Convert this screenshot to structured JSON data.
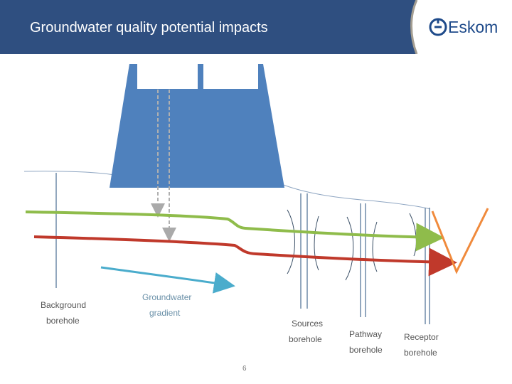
{
  "header": {
    "title": "Groundwater quality potential impacts",
    "logo_text": "Eskom",
    "background_color": "#2f4f80"
  },
  "diagram": {
    "labels": {
      "background_borehole": [
        "Background",
        "borehole"
      ],
      "groundwater_gradient": [
        "Groundwater",
        "gradient"
      ],
      "sources_borehole": [
        "Sources",
        "borehole"
      ],
      "pathway_borehole": [
        "Pathway",
        "borehole"
      ],
      "receptor_borehole": [
        "Receptor",
        "borehole"
      ]
    },
    "colors": {
      "facility": "#4f81bd",
      "water_table_upper": "#8fbc4b",
      "water_table_lower": "#c0392b",
      "gradient_arrow": "#4aaccc",
      "river": "#f08a3c",
      "borehole": "#5a6f8c"
    }
  },
  "footer": {
    "page_number": "6"
  }
}
